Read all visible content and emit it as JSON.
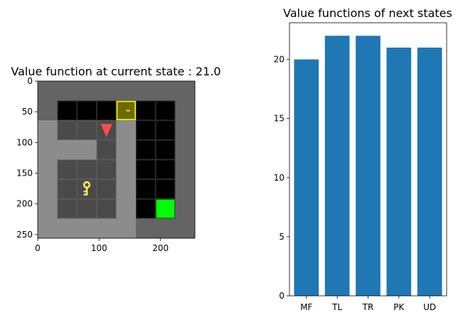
{
  "chart_data": [
    {
      "type": "heatmap",
      "title": "Value function at current state : 21.0",
      "xlim": [
        0,
        256
      ],
      "ylim": [
        256,
        0
      ],
      "x_ticks": [
        "0",
        "100",
        "200"
      ],
      "y_ticks": [
        "0",
        "50",
        "100",
        "150",
        "200",
        "250"
      ],
      "grid_cells": 8,
      "colors": {
        "wall": "#646464",
        "floor_light": "#8c8c8c",
        "floor_dark": "#4a4a4a",
        "unseen": "#000000",
        "goal": "#00ff00",
        "door": "#6b6b00",
        "door_outline": "#ffff00",
        "key": "#ffff55",
        "agent": "#ff4d4d"
      },
      "tiles": [
        [
          0,
          0,
          0,
          0,
          0,
          0,
          0,
          0
        ],
        [
          0,
          4,
          4,
          4,
          8,
          4,
          4,
          0
        ],
        [
          1,
          2,
          2,
          3,
          1,
          4,
          4,
          0
        ],
        [
          1,
          1,
          1,
          3,
          1,
          4,
          4,
          0
        ],
        [
          1,
          2,
          2,
          3,
          1,
          4,
          4,
          0
        ],
        [
          1,
          2,
          2,
          3,
          1,
          4,
          4,
          0
        ],
        [
          1,
          2,
          2,
          3,
          1,
          4,
          5,
          0
        ],
        [
          1,
          1,
          1,
          1,
          1,
          0,
          0,
          0
        ]
      ],
      "key_cell": [
        2,
        5
      ],
      "agent_cell": [
        3,
        2
      ],
      "agent_direction": "down"
    },
    {
      "type": "bar",
      "title": "Value functions of next states",
      "categories": [
        "MF",
        "TL",
        "TR",
        "PK",
        "UD"
      ],
      "values": [
        20,
        22,
        22,
        21,
        21
      ],
      "ylim": [
        0,
        23.1
      ],
      "y_ticks": [
        0,
        5,
        10,
        15,
        20
      ],
      "bar_color": "#1f77b4",
      "xlabel": "",
      "ylabel": ""
    }
  ]
}
